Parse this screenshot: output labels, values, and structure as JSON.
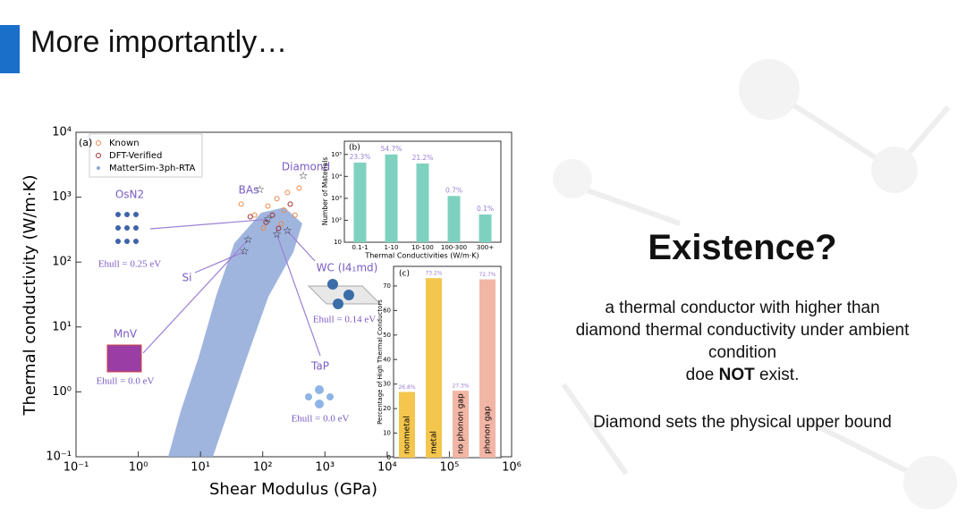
{
  "header": {
    "title": "More importantly…"
  },
  "figure": {
    "main": {
      "type": "scatter",
      "panel_label": "(a)",
      "xlabel": "Shear Modulus (GPa)",
      "ylabel": "Thermal conductivity (W/m·K)",
      "log_x": true,
      "log_y": true,
      "xlim": [
        0.1,
        1000000
      ],
      "ylim": [
        0.1,
        10000
      ],
      "xticks": [
        {
          "value": 0.1,
          "label": "10⁻¹"
        },
        {
          "value": 1,
          "label": "10⁰"
        },
        {
          "value": 10,
          "label": "10¹"
        },
        {
          "value": 100,
          "label": "10²"
        },
        {
          "value": 1000,
          "label": "10³"
        },
        {
          "value": 10000,
          "label": "10⁴"
        },
        {
          "value": 100000,
          "label": "10⁵"
        },
        {
          "value": 1000000,
          "label": "10⁶"
        }
      ],
      "yticks": [
        {
          "value": 0.1,
          "label": "10⁻¹"
        },
        {
          "value": 1,
          "label": "10⁰"
        },
        {
          "value": 10,
          "label": "10¹"
        },
        {
          "value": 100,
          "label": "10²"
        },
        {
          "value": 1000,
          "label": "10³"
        },
        {
          "value": 10000,
          "label": "10⁴"
        }
      ],
      "series": [
        {
          "name": "Known",
          "color": "#e8894a",
          "x": [
            45,
            74,
            121,
            169,
            220,
            250,
            330,
            385,
            103,
            199
          ],
          "y": [
            780,
            530,
            730,
            950,
            630,
            1180,
            530,
            1380,
            330,
            390
          ]
        },
        {
          "name": "DFT-Verified",
          "color": "#9b2d2d",
          "x": [
            63,
            143,
            277,
            180,
            113
          ],
          "y": [
            500,
            530,
            780,
            330,
            410
          ]
        },
        {
          "name": "MatterSim-3ph-RTA",
          "color": "#8fa8d8"
        }
      ],
      "materials": [
        {
          "label": "OsN2",
          "ehull": "Ehull = 0.25 eV",
          "x": 121,
          "y": 455
        },
        {
          "label": "MnV",
          "ehull": "Ehull = 0.0 eV",
          "x": 58,
          "y": 220
        },
        {
          "label": "WC (I4₁md)",
          "ehull": "Ehull = 0.14 eV",
          "x": 250,
          "y": 300
        },
        {
          "label": "TaP",
          "ehull": "Ehull = 0.0 eV",
          "x": 169,
          "y": 265
        },
        {
          "label": "Diamond",
          "x": 450,
          "y": 2100
        },
        {
          "label": "BAs",
          "x": 90,
          "y": 1300
        },
        {
          "label": "Si",
          "x": 51,
          "y": 145
        }
      ]
    },
    "inset_b": {
      "type": "bar",
      "panel_label": "(b)",
      "log_y": true,
      "xlabel": "Thermal Conductivities (W/m·K)",
      "ylabel": "Number of Materials",
      "categories": [
        "0.1-1",
        "1-10",
        "10-100",
        "100-300",
        "300+"
      ],
      "values": [
        42600,
        100000,
        38800,
        1280,
        183
      ],
      "percent_labels": [
        "23.3%",
        "54.7%",
        "21.2%",
        "0.7%",
        "0.1%"
      ],
      "color": "#7fd1bf",
      "label_color": "#9b7fd4",
      "ylim": [
        10,
        400000
      ],
      "yticks": [
        10,
        {
          "value": 100,
          "label": "10²"
        },
        {
          "value": 1000,
          "label": "10³"
        },
        {
          "value": 10000,
          "label": "10⁴"
        },
        {
          "value": 100000,
          "label": "10⁵"
        }
      ]
    },
    "inset_c": {
      "type": "bar",
      "panel_label": "(c)",
      "ylabel": "Percentage of High Thermal Conductors",
      "categories": [
        "nonmetal",
        "metal",
        "no phonon gap",
        "phonon gap"
      ],
      "values": [
        26.8,
        73.2,
        27.3,
        72.7
      ],
      "value_labels": [
        "26.8%",
        "73.2%",
        "27.3%",
        "72.7%"
      ],
      "colors": [
        "#f4c64e",
        "#f4c64e",
        "#f2b6a6",
        "#f2b6a6"
      ],
      "label_color": "#9b7fd4",
      "ylim": [
        0,
        78
      ],
      "yticks": [
        0,
        10,
        20,
        30,
        40,
        50,
        60,
        70
      ]
    }
  },
  "right": {
    "heading": "Existence?",
    "lines": [
      "a thermal conductor with higher than",
      "diamond thermal conductivity under ambient",
      "condition"
    ],
    "negation": [
      "doe ",
      "NOT",
      " exist."
    ],
    "conclusion": "Diamond sets the physical upper bound"
  }
}
